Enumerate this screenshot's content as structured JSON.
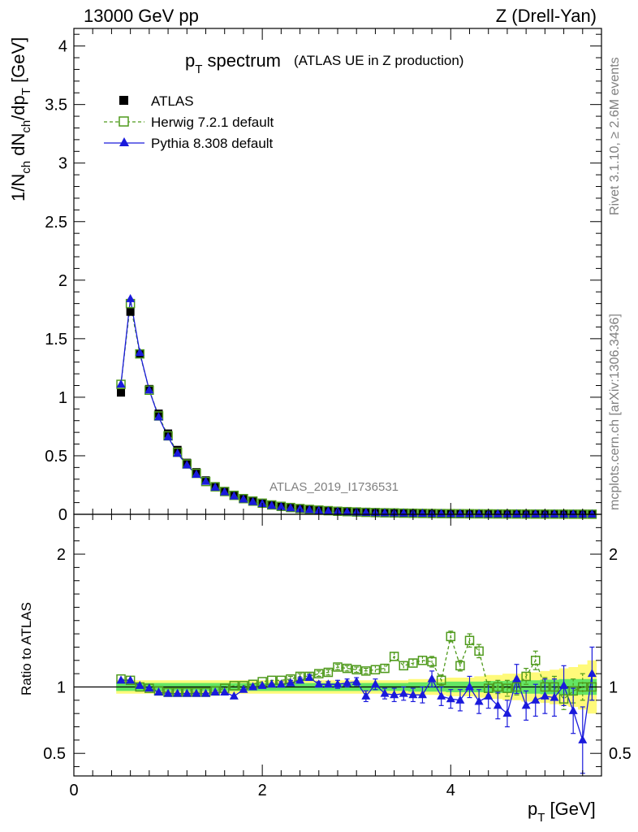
{
  "header": {
    "left": "13000 GeV pp",
    "right": "Z (Drell-Yan)"
  },
  "side_labels": {
    "rivet": "Rivet 3.1.10, ≥ 2.6M events",
    "mcplots": "mcplots.cern.ch [arXiv:1306.3436]"
  },
  "chart_data": [
    {
      "type": "scatter",
      "panel": "main",
      "title_main": "p",
      "title_sub": "T",
      "title_rest": " spectrum",
      "title_note": "(ATLAS UE in Z production)",
      "ylabel": "1/N_ch dN_ch/dp_T [GeV]",
      "watermark": "ATLAS_2019_I1736531",
      "xlim": [
        0,
        5.6
      ],
      "ylim": [
        0,
        4.15
      ],
      "yticks": [
        0,
        0.5,
        1,
        1.5,
        2,
        2.5,
        3,
        3.5,
        4
      ],
      "ytick_labels": [
        "0",
        "0.5",
        "1",
        "1.5",
        "2",
        "2.5",
        "3",
        "3.5",
        "4"
      ],
      "legend": [
        {
          "label": "ATLAS",
          "color": "#000000",
          "marker": "square-filled"
        },
        {
          "label": "Herwig 7.2.1 default",
          "color": "#4f9a1c",
          "marker": "square-open",
          "line": "dashed"
        },
        {
          "label": "Pythia 8.308 default",
          "color": "#1a1adc",
          "marker": "triangle",
          "line": "solid"
        }
      ],
      "x": [
        0.5,
        0.6,
        0.7,
        0.8,
        0.9,
        1.0,
        1.1,
        1.2,
        1.3,
        1.4,
        1.5,
        1.6,
        1.7,
        1.8,
        1.9,
        2.0,
        2.1,
        2.2,
        2.3,
        2.4,
        2.5,
        2.6,
        2.7,
        2.8,
        2.9,
        3.0,
        3.1,
        3.2,
        3.3,
        3.4,
        3.5,
        3.6,
        3.7,
        3.8,
        3.9,
        4.0,
        4.1,
        4.2,
        4.3,
        4.4,
        4.5,
        4.6,
        4.7,
        4.8,
        4.9,
        5.0,
        5.1,
        5.2,
        5.3,
        5.4,
        5.5
      ],
      "series": [
        {
          "name": "ATLAS",
          "values": [
            1.04,
            1.73,
            1.37,
            1.07,
            0.86,
            0.69,
            0.55,
            0.44,
            0.36,
            0.29,
            0.24,
            0.195,
            0.16,
            0.132,
            0.11,
            0.092,
            0.077,
            0.065,
            0.055,
            0.046,
            0.039,
            0.033,
            0.028,
            0.024,
            0.021,
            0.018,
            0.016,
            0.014,
            0.012,
            0.011,
            0.0095,
            0.0083,
            0.0073,
            0.0064,
            0.0057,
            0.005,
            0.0044,
            0.0039,
            0.0035,
            0.0031,
            0.0028,
            0.0025,
            0.0022,
            0.002,
            0.0018,
            0.0016,
            0.0015,
            0.0013,
            0.0012,
            0.0011,
            0.001
          ]
        },
        {
          "name": "Herwig 7.2.1 default",
          "values": [
            1.11,
            1.8,
            1.37,
            1.06,
            0.84,
            0.67,
            0.53,
            0.43,
            0.35,
            0.28,
            0.235,
            0.195,
            0.162,
            0.134,
            0.113,
            0.095,
            0.08,
            0.068,
            0.058,
            0.049,
            0.042,
            0.036,
            0.031,
            0.026,
            0.023,
            0.02,
            0.017,
            0.015,
            0.013,
            0.012,
            0.01,
            0.009,
            0.008,
            0.007,
            0.006,
            0.0055,
            0.005,
            0.0045,
            0.004,
            0.0035,
            0.003,
            0.0028,
            0.0025,
            0.0022,
            0.002,
            0.0018,
            0.0016,
            0.0014,
            0.0012,
            0.0011,
            0.001
          ]
        },
        {
          "name": "Pythia 8.308 default",
          "values": [
            1.11,
            1.84,
            1.38,
            1.06,
            0.83,
            0.66,
            0.52,
            0.42,
            0.34,
            0.28,
            0.23,
            0.19,
            0.155,
            0.128,
            0.107,
            0.09,
            0.075,
            0.064,
            0.054,
            0.045,
            0.038,
            0.032,
            0.027,
            0.023,
            0.02,
            0.017,
            0.015,
            0.013,
            0.011,
            0.01,
            0.009,
            0.008,
            0.007,
            0.006,
            0.0053,
            0.0047,
            0.0042,
            0.0037,
            0.0033,
            0.003,
            0.0027,
            0.0024,
            0.0021,
            0.0019,
            0.0017,
            0.0015,
            0.0014,
            0.0012,
            0.0011,
            0.001,
            0.0009
          ]
        }
      ]
    },
    {
      "type": "scatter",
      "panel": "ratio",
      "ylabel": "Ratio to ATLAS",
      "xlabel_main": "p",
      "xlabel_sub": "T",
      "xlabel_rest": " [GeV]",
      "xlim": [
        0,
        5.6
      ],
      "ylim": [
        0.33,
        2.3
      ],
      "yticks": [
        0.5,
        1,
        2
      ],
      "ytick_labels": [
        "0.5",
        "1",
        "2"
      ],
      "xticks": [
        0,
        2,
        4
      ],
      "xtick_labels": [
        "0",
        "2",
        "4"
      ],
      "band_colors": {
        "inner": "#64e664",
        "outer": "#fffa7a"
      },
      "x": [
        0.5,
        0.6,
        0.7,
        0.8,
        0.9,
        1.0,
        1.1,
        1.2,
        1.3,
        1.4,
        1.5,
        1.6,
        1.7,
        1.8,
        1.9,
        2.0,
        2.1,
        2.2,
        2.3,
        2.4,
        2.5,
        2.6,
        2.7,
        2.8,
        2.9,
        3.0,
        3.1,
        3.2,
        3.3,
        3.4,
        3.5,
        3.6,
        3.7,
        3.8,
        3.9,
        4.0,
        4.1,
        4.2,
        4.3,
        4.4,
        4.5,
        4.6,
        4.7,
        4.8,
        4.9,
        5.0,
        5.1,
        5.2,
        5.3,
        5.4,
        5.5
      ],
      "band_inner": [
        0.03,
        0.03,
        0.03,
        0.03,
        0.03,
        0.03,
        0.03,
        0.03,
        0.03,
        0.03,
        0.03,
        0.03,
        0.03,
        0.03,
        0.03,
        0.03,
        0.03,
        0.03,
        0.03,
        0.03,
        0.03,
        0.03,
        0.03,
        0.03,
        0.03,
        0.03,
        0.03,
        0.03,
        0.03,
        0.03,
        0.03,
        0.035,
        0.035,
        0.035,
        0.035,
        0.04,
        0.04,
        0.04,
        0.04,
        0.045,
        0.045,
        0.045,
        0.05,
        0.05,
        0.05,
        0.055,
        0.055,
        0.06,
        0.06,
        0.06,
        0.06
      ],
      "band_outer": [
        0.05,
        0.05,
        0.05,
        0.05,
        0.05,
        0.05,
        0.05,
        0.05,
        0.05,
        0.05,
        0.05,
        0.05,
        0.05,
        0.05,
        0.05,
        0.05,
        0.05,
        0.05,
        0.05,
        0.05,
        0.05,
        0.05,
        0.05,
        0.05,
        0.05,
        0.05,
        0.05,
        0.05,
        0.05,
        0.05,
        0.05,
        0.06,
        0.06,
        0.06,
        0.06,
        0.07,
        0.07,
        0.07,
        0.08,
        0.09,
        0.09,
        0.1,
        0.1,
        0.11,
        0.11,
        0.12,
        0.13,
        0.14,
        0.15,
        0.17,
        0.2
      ],
      "series": [
        {
          "name": "Herwig 7.2.1 default",
          "values": [
            1.06,
            1.05,
            1.0,
            0.99,
            0.97,
            0.96,
            0.96,
            0.96,
            0.96,
            0.96,
            0.97,
            0.99,
            1.01,
            1.01,
            1.02,
            1.04,
            1.05,
            1.05,
            1.06,
            1.08,
            1.08,
            1.1,
            1.11,
            1.15,
            1.14,
            1.13,
            1.12,
            1.13,
            1.14,
            1.23,
            1.16,
            1.18,
            1.2,
            1.19,
            1.05,
            1.38,
            1.16,
            1.35,
            1.27,
            0.99,
            1.0,
            0.99,
            1.0,
            1.08,
            1.2,
            1.0,
            1.0,
            0.91,
            0.97,
            1.0,
            1.0
          ],
          "errors": [
            0.01,
            0.01,
            0.01,
            0.01,
            0.01,
            0.01,
            0.01,
            0.01,
            0.01,
            0.01,
            0.01,
            0.01,
            0.01,
            0.01,
            0.01,
            0.01,
            0.01,
            0.01,
            0.02,
            0.02,
            0.02,
            0.02,
            0.02,
            0.02,
            0.02,
            0.02,
            0.02,
            0.03,
            0.03,
            0.03,
            0.03,
            0.03,
            0.03,
            0.04,
            0.04,
            0.04,
            0.04,
            0.05,
            0.05,
            0.05,
            0.05,
            0.06,
            0.06,
            0.06,
            0.07,
            0.07,
            0.08,
            0.08,
            0.09,
            0.1,
            0.1
          ]
        },
        {
          "name": "Pythia 8.308 default",
          "values": [
            1.05,
            1.05,
            1.01,
            0.99,
            0.96,
            0.95,
            0.95,
            0.95,
            0.95,
            0.95,
            0.96,
            0.96,
            0.93,
            0.98,
            1.0,
            1.01,
            1.02,
            1.02,
            1.03,
            1.05,
            1.07,
            1.02,
            1.02,
            1.02,
            1.03,
            1.04,
            0.93,
            1.02,
            0.95,
            0.94,
            0.95,
            0.94,
            0.94,
            1.06,
            0.93,
            0.91,
            0.9,
            1.0,
            0.89,
            0.93,
            0.86,
            0.8,
            1.06,
            0.86,
            0.9,
            0.93,
            0.92,
            1.01,
            0.82,
            0.6,
            1.1
          ],
          "errors": [
            0.01,
            0.01,
            0.01,
            0.01,
            0.01,
            0.01,
            0.01,
            0.01,
            0.01,
            0.01,
            0.01,
            0.01,
            0.01,
            0.01,
            0.01,
            0.01,
            0.01,
            0.02,
            0.02,
            0.02,
            0.02,
            0.02,
            0.02,
            0.03,
            0.03,
            0.03,
            0.04,
            0.04,
            0.04,
            0.05,
            0.05,
            0.05,
            0.06,
            0.06,
            0.07,
            0.07,
            0.08,
            0.08,
            0.09,
            0.09,
            0.1,
            0.1,
            0.11,
            0.11,
            0.12,
            0.13,
            0.14,
            0.15,
            0.17,
            0.25,
            0.2
          ]
        }
      ]
    }
  ]
}
